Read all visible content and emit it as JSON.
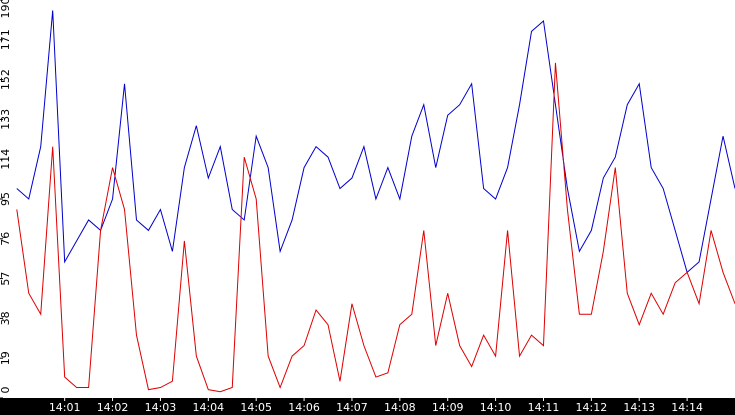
{
  "chart_data": {
    "type": "line",
    "x": [
      0,
      0.25,
      0.5,
      0.75,
      1,
      1.25,
      1.5,
      1.75,
      2,
      2.25,
      2.5,
      2.75,
      3,
      3.25,
      3.5,
      3.75,
      4,
      4.25,
      4.5,
      4.75,
      5,
      5.25,
      5.5,
      5.75,
      6,
      6.25,
      6.5,
      6.75,
      7,
      7.25,
      7.5,
      7.75,
      8,
      8.25,
      8.5,
      8.75,
      9,
      9.25,
      9.5,
      9.75,
      10,
      10.25,
      10.5,
      10.75,
      11,
      11.25,
      11.5,
      11.75,
      12,
      12.25,
      12.5,
      12.75,
      13,
      13.25,
      13.5,
      13.75,
      14,
      14.25,
      14.5,
      14.75,
      15
    ],
    "series": [
      {
        "name": "blue",
        "color": "#0000cc",
        "values": [
          100,
          95,
          120,
          185,
          65,
          75,
          85,
          80,
          95,
          150,
          85,
          80,
          90,
          70,
          110,
          130,
          105,
          120,
          90,
          85,
          125,
          110,
          70,
          85,
          110,
          120,
          115,
          100,
          105,
          120,
          95,
          110,
          95,
          125,
          140,
          110,
          135,
          140,
          150,
          100,
          95,
          110,
          140,
          175,
          180,
          140,
          100,
          70,
          80,
          105,
          115,
          140,
          150,
          110,
          100,
          80,
          60,
          65,
          95,
          125,
          100
        ]
      },
      {
        "name": "red",
        "color": "#dd0000",
        "values": [
          90,
          50,
          40,
          120,
          10,
          5,
          5,
          80,
          110,
          90,
          30,
          4,
          5,
          8,
          75,
          20,
          4,
          3,
          5,
          115,
          95,
          20,
          5,
          20,
          25,
          42,
          35,
          8,
          45,
          25,
          10,
          12,
          35,
          40,
          80,
          25,
          50,
          25,
          15,
          30,
          20,
          80,
          20,
          30,
          25,
          160,
          90,
          40,
          40,
          70,
          110,
          50,
          35,
          50,
          40,
          55,
          60,
          45,
          80,
          60,
          45
        ]
      }
    ],
    "xlim": [
      -0.1,
      15
    ],
    "xticks": [
      {
        "value": 1,
        "label": "14:01"
      },
      {
        "value": 2,
        "label": "14:02"
      },
      {
        "value": 3,
        "label": "14:03"
      },
      {
        "value": 4,
        "label": "14:04"
      },
      {
        "value": 5,
        "label": "14:05"
      },
      {
        "value": 6,
        "label": "14:06"
      },
      {
        "value": 7,
        "label": "14:07"
      },
      {
        "value": 8,
        "label": "14:08"
      },
      {
        "value": 9,
        "label": "14:09"
      },
      {
        "value": 10,
        "label": "14:10"
      },
      {
        "value": 11,
        "label": "14:11"
      },
      {
        "value": 12,
        "label": "14:12"
      },
      {
        "value": 13,
        "label": "14:13"
      },
      {
        "value": 14,
        "label": "14:14"
      }
    ],
    "ylim": [
      0,
      190
    ],
    "yticks": [
      0,
      19,
      38,
      57,
      76,
      95,
      114,
      133,
      152,
      171,
      190
    ]
  }
}
